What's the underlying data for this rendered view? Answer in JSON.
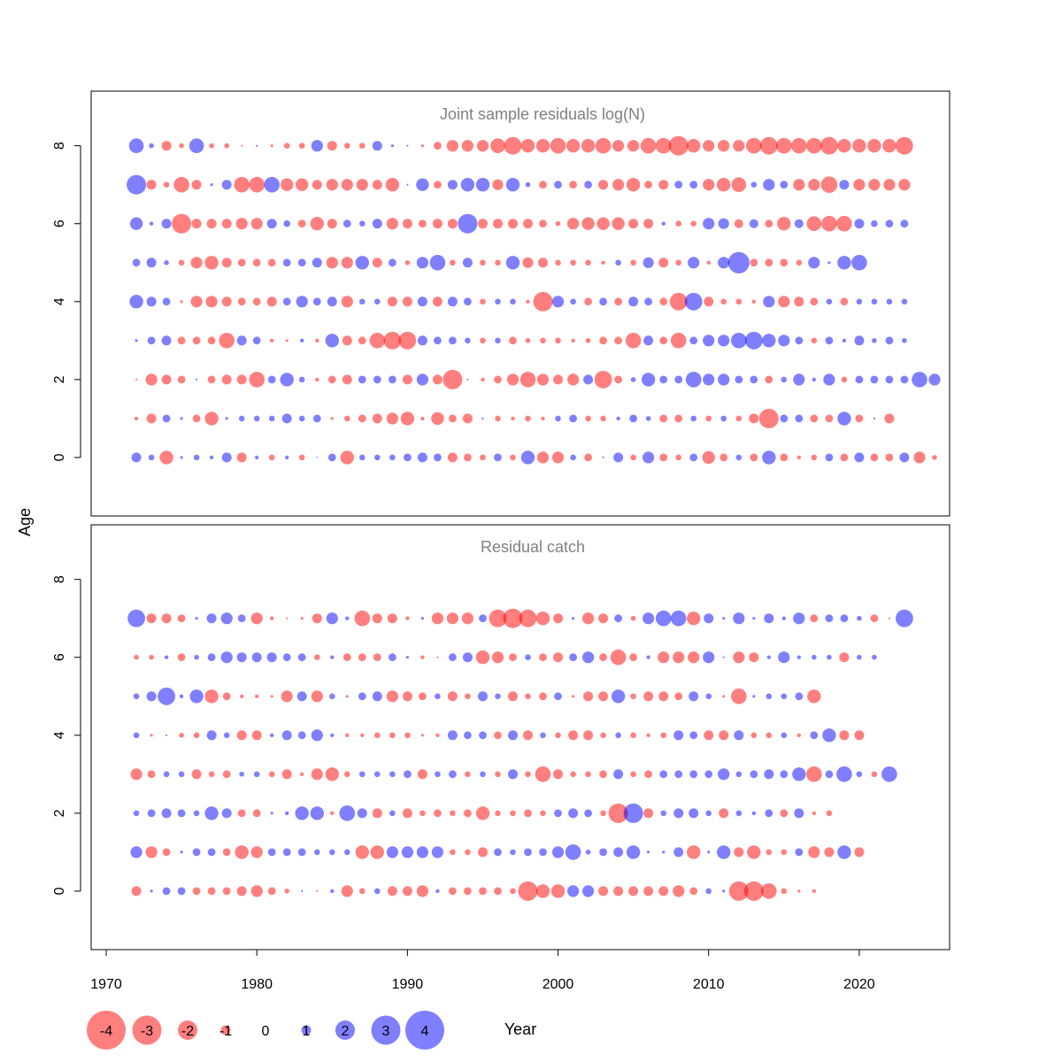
{
  "colors": {
    "positive": "#0000ff",
    "negative": "#ff0000",
    "positive_rgb": "0,0,255",
    "negative_rgb": "255,0,0",
    "panel_title": "#808080"
  },
  "chart_data": {
    "type": "bubble",
    "xlabel": "Year",
    "ylabel": "Age",
    "xlim": [
      1969,
      2026
    ],
    "x_ticks": [
      "1970",
      "1980",
      "1990",
      "2000",
      "2010",
      "2020"
    ],
    "legend": {
      "position": "bottom-left",
      "entries": [
        {
          "value": -4,
          "label": "-4"
        },
        {
          "value": -3,
          "label": "-3"
        },
        {
          "value": -2,
          "label": "-2"
        },
        {
          "value": -1,
          "label": "-1"
        },
        {
          "value": 0,
          "label": "0"
        },
        {
          "value": 1,
          "label": "1"
        },
        {
          "value": 2,
          "label": "2"
        },
        {
          "value": 3,
          "label": "3"
        },
        {
          "value": 4,
          "label": "4"
        }
      ]
    },
    "panels": [
      {
        "title": "Joint sample residuals log(N)",
        "ylim": [
          -1.5,
          9.4
        ],
        "y_ticks": [
          "0",
          "2",
          "4",
          "6",
          "8"
        ],
        "rows": [
          {
            "age": 8,
            "start": 1972,
            "residuals": [
              1.5,
              0.5,
              -1,
              -0.5,
              1.5,
              -0.5,
              -0.5,
              -0.2,
              0.2,
              -0.3,
              -0.6,
              -0.6,
              1.2,
              -1,
              -0.6,
              -0.6,
              1,
              0.3,
              0.2,
              -0.3,
              -0.8,
              -1.2,
              -1.2,
              -1.2,
              -1.5,
              -1.8,
              -1.4,
              -1.4,
              -1.6,
              -1.4,
              -1.4,
              -1.6,
              -1.2,
              -1.2,
              -1.6,
              -1.6,
              -2,
              -1.4,
              -1.2,
              -1.2,
              -1.2,
              -1.6,
              -1.8,
              -1.6,
              -1.6,
              -1.6,
              -1.8,
              -1.4,
              -1.4,
              -1.4,
              -1.4,
              -1.8
            ]
          },
          {
            "age": 7,
            "start": 1972,
            "residuals": [
              2,
              -1,
              -0.6,
              -1.6,
              -1,
              0.3,
              1,
              -1.6,
              -1.6,
              1.6,
              -1.3,
              -1.3,
              -1,
              -1.2,
              -1.2,
              -1.2,
              -1,
              -1.4,
              0.2,
              1.3,
              -0.8,
              1,
              1.4,
              1.4,
              -1.1,
              1.4,
              0.5,
              -0.8,
              0.8,
              -0.8,
              0.8,
              -1,
              -1.2,
              -1.4,
              -0.8,
              -1,
              0.8,
              0.8,
              -1.2,
              -1.4,
              -1.5,
              0.6,
              1.2,
              0.8,
              -1.2,
              -1.2,
              -1.7,
              1,
              -1.2,
              -1.2,
              -1.2,
              -1.2
            ]
          },
          {
            "age": 6,
            "start": 1972,
            "residuals": [
              1.3,
              0.4,
              1,
              -2,
              -1,
              -1,
              -1,
              -1.2,
              -1.2,
              1,
              0.7,
              -0.8,
              -1.4,
              -1,
              0.8,
              0.6,
              1,
              -1.2,
              -1,
              -0.8,
              -1,
              -1,
              2,
              -1,
              -1,
              -1,
              -1,
              -0.8,
              -0.5,
              -1.2,
              -1.3,
              -1.3,
              -1.3,
              -1,
              -1,
              0.4,
              -0.6,
              -0.6,
              1.2,
              1.1,
              -0.9,
              0.9,
              -0.8,
              -1.4,
              0.9,
              -1.5,
              -1.6,
              -1.6,
              1,
              0.7,
              0.8,
              0.8
            ]
          },
          {
            "age": 5,
            "start": 1972,
            "residuals": [
              0.8,
              1,
              0.5,
              -0.6,
              -1.2,
              -1.4,
              -1,
              -0.8,
              -0.8,
              -0.8,
              0.8,
              0.8,
              1,
              -1.2,
              -1.2,
              1.4,
              -1,
              0.8,
              -0.5,
              1.2,
              1.6,
              -0.6,
              1,
              -0.6,
              -0.6,
              1.4,
              -1.1,
              -1,
              -0.6,
              -0.6,
              -0.6,
              -0.4,
              0.6,
              -0.6,
              1.1,
              -1,
              -0.6,
              1.2,
              -0.4,
              1.2,
              2.2,
              -0.8,
              -0.8,
              -0.8,
              -0.6,
              1.2,
              0.3,
              1.4,
              1.6
            ]
          },
          {
            "age": 4,
            "start": 1972,
            "residuals": [
              1.4,
              1,
              0.8,
              -0.3,
              -1.2,
              -1.2,
              -1,
              -0.8,
              -0.8,
              -1,
              0.8,
              1.2,
              0.8,
              1,
              -1.2,
              0.6,
              0.6,
              -1,
              -1,
              1,
              -1,
              1,
              0.8,
              -0.6,
              0.6,
              0.6,
              -0.4,
              -2,
              1.2,
              0.6,
              -0.8,
              0.8,
              -0.8,
              1,
              0.8,
              -0.8,
              -1.8,
              1.8,
              -1,
              -0.6,
              -0.6,
              -0.4,
              1.2,
              -1.2,
              -1,
              -0.8,
              0.6,
              -0.8,
              0.6,
              0.6,
              0.6,
              0.6
            ]
          },
          {
            "age": 3,
            "start": 1972,
            "residuals": [
              0.3,
              0.8,
              1,
              -0.8,
              -0.8,
              -0.8,
              -1.6,
              1,
              0.8,
              -0.4,
              -0.3,
              0.4,
              -0.4,
              1.4,
              -1,
              -0.8,
              -1.6,
              -1.8,
              -1.8,
              1,
              0.8,
              0.8,
              0.6,
              -0.6,
              0.6,
              -0.8,
              -0.5,
              -0.6,
              -0.6,
              -0.4,
              -0.5,
              -0.8,
              -0.8,
              -1.6,
              1,
              -0.8,
              -1.6,
              0.8,
              1.2,
              1.2,
              1.6,
              1.8,
              1.4,
              1.2,
              0.8,
              -0.6,
              0.8,
              0.4,
              1,
              0.5,
              0.8,
              0.5
            ]
          },
          {
            "age": 2,
            "start": 1972,
            "residuals": [
              -0.2,
              -1.2,
              -1,
              -0.8,
              0.2,
              -0.8,
              -1,
              -1,
              -1.6,
              0.8,
              1.4,
              0.6,
              -0.4,
              -0.8,
              -1,
              0.8,
              0.8,
              0.8,
              -1,
              1.2,
              -1,
              -2,
              -0.2,
              -0.4,
              -0.8,
              -1.2,
              -1.6,
              -1.2,
              -1,
              -1.2,
              1,
              -1.8,
              -0.8,
              0.5,
              1.4,
              0.8,
              0.8,
              1.6,
              1.2,
              1.2,
              0.8,
              0.8,
              -0.8,
              0.6,
              1.2,
              0.4,
              1.2,
              -0.6,
              0.8,
              0.8,
              0.8,
              0.8,
              1.6,
              1.2
            ]
          },
          {
            "age": 1,
            "start": 1972,
            "residuals": [
              -0.4,
              -1,
              0.8,
              0.3,
              -0.8,
              -1.4,
              0.3,
              0.6,
              0.6,
              0.6,
              1,
              0.6,
              0.8,
              -0.3,
              -0.6,
              -0.8,
              -1,
              -1.2,
              -1.4,
              -0.4,
              -1.3,
              -0.8,
              -1,
              0.2,
              -0.6,
              -0.4,
              -0.6,
              -0.4,
              0.6,
              0.8,
              -0.6,
              -0.6,
              0.4,
              0.8,
              0.5,
              -0.8,
              -0.8,
              0.6,
              -0.6,
              0.6,
              -0.6,
              -1,
              -2,
              0.8,
              0.8,
              -0.8,
              -0.8,
              1.4,
              -0.8,
              0.2,
              -1
            ]
          },
          {
            "age": 0,
            "start": 1972,
            "residuals": [
              1,
              0.6,
              -1.4,
              0.3,
              0.6,
              0.4,
              1,
              -1,
              0.4,
              -0.6,
              0.4,
              -0.6,
              0.1,
              0.8,
              -1.4,
              0.6,
              0.6,
              0.6,
              0.8,
              1,
              0.8,
              -1,
              -0.8,
              -0.6,
              0.8,
              -0.6,
              1.4,
              -1.2,
              -1.2,
              0.6,
              -0.8,
              0.2,
              1,
              -0.6,
              1.2,
              -0.8,
              -0.6,
              0.8,
              -1.3,
              -0.8,
              0.6,
              -0.8,
              1.4,
              -0.8,
              -0.4,
              -0.6,
              0.8,
              -0.8,
              1,
              -0.8,
              -0.8,
              1,
              -1.2,
              -0.5
            ]
          }
        ]
      },
      {
        "title": "Residual catch",
        "ylim": [
          -1.5,
          9.4
        ],
        "y_ticks": [
          "0",
          "2",
          "4",
          "6",
          "8"
        ],
        "rows": [
          {
            "age": 7,
            "start": 1972,
            "residuals": [
              1.8,
              -1,
              -1,
              -0.8,
              0.3,
              1,
              1.2,
              0.8,
              -1.2,
              -0.4,
              -0.2,
              -0.3,
              -1,
              1.2,
              0.4,
              -1.6,
              -1,
              -1,
              -0.4,
              0.3,
              -1.2,
              -1.2,
              -1.2,
              0.8,
              -1.8,
              -2,
              -1.8,
              -1.4,
              -1,
              0.3,
              -1.2,
              -1,
              0.8,
              -0.5,
              1.2,
              1.6,
              1.6,
              -1.4,
              1,
              0.3,
              1.2,
              0.3,
              1,
              0.4,
              1.2,
              -0.8,
              0.8,
              0.8,
              0.5,
              -0.8,
              -0.2,
              1.8
            ]
          },
          {
            "age": 6,
            "start": 1972,
            "residuals": [
              -0.5,
              -0.5,
              0.4,
              -0.8,
              0.5,
              0.8,
              1.2,
              1,
              1,
              1,
              0.8,
              0.8,
              -0.6,
              0.4,
              -0.8,
              -0.8,
              -0.8,
              0.8,
              0.3,
              -0.4,
              -0.2,
              0.8,
              1,
              -1.4,
              -1.2,
              -0.8,
              0.6,
              -0.8,
              -1,
              0.8,
              1.2,
              -0.8,
              -1.6,
              -0.8,
              0.4,
              -1.2,
              -1.2,
              -1.2,
              1.2,
              0.2,
              -1.2,
              -1,
              0.4,
              1.2,
              0.4,
              0.5,
              0.5,
              -1,
              0.5,
              0.5
            ]
          },
          {
            "age": 5,
            "start": 1972,
            "residuals": [
              0.6,
              1,
              1.8,
              0.4,
              1.4,
              -1.4,
              -0.8,
              -0.4,
              -0.4,
              -0.3,
              -1.2,
              1,
              -1.2,
              0.6,
              -0.3,
              0.8,
              1,
              -1.2,
              -1,
              -0.8,
              0.6,
              -1,
              -0.6,
              1,
              0.6,
              -1,
              -0.6,
              -0.8,
              0.8,
              -0.3,
              -1,
              -1,
              1.4,
              -0.6,
              -1,
              -1,
              -0.8,
              1,
              0.6,
              -0.3,
              -1.6,
              0.3,
              0.6,
              0.6,
              0.8,
              -1.4
            ]
          },
          {
            "age": 4,
            "start": 1972,
            "residuals": [
              0.6,
              -0.3,
              0.2,
              -0.5,
              -0.6,
              1,
              0.6,
              -1,
              -1,
              0.4,
              1,
              0.8,
              1.2,
              0.4,
              -0.4,
              -0.4,
              -0.6,
              -0.6,
              -0.6,
              -0.3,
              -0.4,
              1,
              0.8,
              0.8,
              -0.8,
              1,
              -1,
              0.6,
              -0.6,
              -1,
              -1,
              -0.6,
              0.6,
              -0.6,
              -0.4,
              -0.6,
              1,
              0.8,
              -1,
              -1,
              1,
              -0.6,
              -0.6,
              0.6,
              -0.4,
              0.8,
              1.4,
              -1,
              -1
            ]
          },
          {
            "age": 3,
            "start": 1972,
            "residuals": [
              -1.2,
              -0.8,
              0.6,
              0.6,
              -1,
              -0.6,
              -0.8,
              0.5,
              0.6,
              -0.6,
              -1,
              -0.4,
              -1.2,
              -1.4,
              -0.6,
              0.6,
              0.6,
              0.6,
              0.8,
              -1,
              0.6,
              0.8,
              -0.6,
              0.6,
              -0.6,
              1,
              -0.6,
              -1.6,
              -1,
              -0.6,
              -0.6,
              -0.8,
              1,
              -0.6,
              -0.8,
              0.8,
              0.8,
              0.8,
              0.8,
              1.2,
              0.6,
              0.8,
              1,
              0.8,
              1.4,
              -1.6,
              0.8,
              1.6,
              0.6,
              -0.6,
              1.6
            ]
          },
          {
            "age": 2,
            "start": 1972,
            "residuals": [
              0.6,
              0.8,
              1,
              0.8,
              0.6,
              1.4,
              1,
              -0.8,
              -0.8,
              0.3,
              0.4,
              1.4,
              1.4,
              -0.4,
              1.6,
              1,
              -1,
              0.6,
              -1,
              -0.6,
              -0.8,
              -0.6,
              -0.8,
              -1.4,
              -0.6,
              -0.6,
              -0.8,
              -0.6,
              0.8,
              1,
              0.8,
              -0.6,
              -2,
              2,
              -1,
              0.6,
              1,
              1,
              0.6,
              -1,
              0.6,
              0.4,
              0.8,
              -0.8,
              1,
              -0.4,
              -0.6
            ]
          },
          {
            "age": 1,
            "start": 1972,
            "residuals": [
              1.2,
              -1.2,
              -0.8,
              0.3,
              0.8,
              0.8,
              -0.8,
              -1.4,
              -1.2,
              0.8,
              0.8,
              0.8,
              0.6,
              0.6,
              0.6,
              -1.4,
              -1.4,
              1.2,
              1.2,
              1.2,
              1.2,
              -0.6,
              -0.6,
              -1,
              0.8,
              0.6,
              0.8,
              0.8,
              1.2,
              1.6,
              0.5,
              0.8,
              1,
              1.4,
              0.3,
              0.3,
              1,
              -1.4,
              0.3,
              1.4,
              -1,
              -1.4,
              -0.6,
              -0.6,
              0.8,
              -1.2,
              -1,
              1.4,
              -1
            ]
          },
          {
            "age": 0,
            "start": 1972,
            "residuals": [
              -1,
              0.3,
              0.8,
              0.8,
              -0.8,
              -0.8,
              -0.8,
              -1,
              -1.2,
              -0.8,
              -0.5,
              0.2,
              -0.2,
              0.4,
              -1.2,
              -0.6,
              0.6,
              -1,
              -1,
              -1.2,
              0.4,
              -0.8,
              -0.8,
              -0.8,
              -0.8,
              -0.6,
              -2,
              -1.4,
              -1.4,
              1.2,
              1.2,
              -1,
              -1,
              -1,
              -1,
              -1,
              -1.2,
              -0.8,
              0.6,
              0.3,
              -2,
              -2,
              -1.6,
              -0.6,
              -0.3,
              -0.4
            ]
          }
        ]
      }
    ]
  }
}
